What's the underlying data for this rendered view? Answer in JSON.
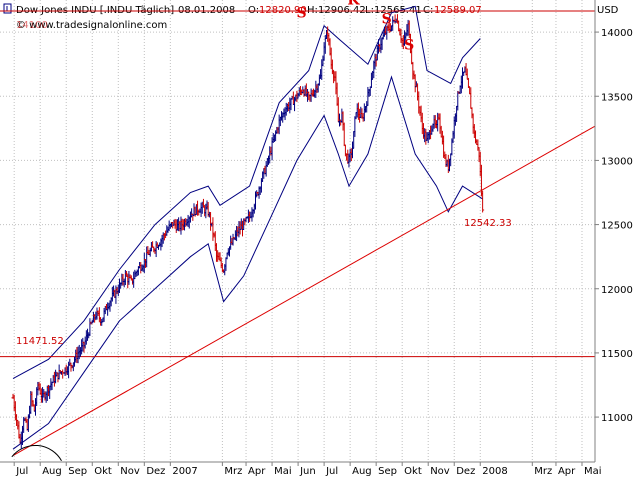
{
  "header": {
    "instrument": "Dow Jones INDU [.INDU  Täglich]",
    "date": "08.01.2008",
    "open_label": "O:",
    "open": "12820.90",
    "high_label": "H:",
    "high": "12906.42",
    "low_label": "L:",
    "low": "12565.41",
    "close_label": "C:",
    "close": "12589.07",
    "currency": "USD",
    "watermark": "© www.tradesignalonline.com",
    "ref_value_top": "14100"
  },
  "annotations": {
    "pattern_letters": [
      "S",
      "K",
      "S",
      "S"
    ],
    "last_price_label": "12542.33",
    "support_label": "11471.52"
  },
  "colors": {
    "price_up": "#000080",
    "price_down": "#cc0000",
    "band": "#000080",
    "trendline": "#dd0000",
    "hline": "#cc0000",
    "grid": "#c0c0c0"
  },
  "chart_data": {
    "type": "line",
    "series_type": "ohlc",
    "title": "Dow Jones INDU [.INDU  Täglich]",
    "ylim": [
      10650,
      14250
    ],
    "y_ticks": [
      11000,
      11500,
      12000,
      12500,
      13000,
      13500,
      14000
    ],
    "x_ticks": [
      "Jul",
      "Aug",
      "Sep",
      "Okt",
      "Nov",
      "Dez",
      "2007",
      "Mrz",
      "Apr",
      "Mai",
      "Jun",
      "Jul",
      "Aug",
      "Sep",
      "Okt",
      "Nov",
      "Dez",
      "2008",
      "Mrz",
      "Apr",
      "Mai"
    ],
    "x_tick_index": [
      1,
      23,
      45,
      67,
      89,
      111,
      133,
      177,
      197,
      219,
      241,
      263,
      285,
      307,
      329,
      351,
      373,
      395,
      439,
      459,
      481
    ],
    "x_range": [
      -11,
      492
    ],
    "grid": true,
    "price_path": [
      [
        0,
        11150
      ],
      [
        3,
        10980
      ],
      [
        6,
        10800
      ],
      [
        9,
        11000
      ],
      [
        12,
        10900
      ],
      [
        15,
        11150
      ],
      [
        18,
        11050
      ],
      [
        21,
        11250
      ],
      [
        25,
        11150
      ],
      [
        30,
        11230
      ],
      [
        35,
        11300
      ],
      [
        40,
        11350
      ],
      [
        45,
        11380
      ],
      [
        50,
        11420
      ],
      [
        55,
        11500
      ],
      [
        60,
        11560
      ],
      [
        65,
        11700
      ],
      [
        70,
        11800
      ],
      [
        75,
        11760
      ],
      [
        80,
        11880
      ],
      [
        85,
        11950
      ],
      [
        90,
        12020
      ],
      [
        95,
        12100
      ],
      [
        100,
        12050
      ],
      [
        105,
        12150
      ],
      [
        110,
        12200
      ],
      [
        115,
        12280
      ],
      [
        120,
        12330
      ],
      [
        125,
        12380
      ],
      [
        130,
        12450
      ],
      [
        135,
        12510
      ],
      [
        140,
        12480
      ],
      [
        145,
        12520
      ],
      [
        150,
        12580
      ],
      [
        155,
        12620
      ],
      [
        160,
        12630
      ],
      [
        165,
        12600
      ],
      [
        170,
        12400
      ],
      [
        172,
        12250
      ],
      [
        175,
        12200
      ],
      [
        178,
        12150
      ],
      [
        181,
        12300
      ],
      [
        185,
        12350
      ],
      [
        190,
        12450
      ],
      [
        195,
        12500
      ],
      [
        200,
        12560
      ],
      [
        205,
        12700
      ],
      [
        210,
        12850
      ],
      [
        215,
        12980
      ],
      [
        220,
        13150
      ],
      [
        225,
        13300
      ],
      [
        230,
        13400
      ],
      [
        235,
        13450
      ],
      [
        240,
        13500
      ],
      [
        245,
        13560
      ],
      [
        250,
        13480
      ],
      [
        255,
        13550
      ],
      [
        260,
        13650
      ],
      [
        263,
        13900
      ],
      [
        266,
        14000
      ],
      [
        269,
        13750
      ],
      [
        272,
        13650
      ],
      [
        275,
        13300
      ],
      [
        278,
        13350
      ],
      [
        281,
        13050
      ],
      [
        284,
        13000
      ],
      [
        287,
        13100
      ],
      [
        290,
        13400
      ],
      [
        295,
        13320
      ],
      [
        300,
        13500
      ],
      [
        305,
        13750
      ],
      [
        310,
        13900
      ],
      [
        315,
        14000
      ],
      [
        320,
        14050
      ],
      [
        324,
        14120
      ],
      [
        327,
        14000
      ],
      [
        330,
        13900
      ],
      [
        334,
        14050
      ],
      [
        338,
        13700
      ],
      [
        342,
        13500
      ],
      [
        346,
        13250
      ],
      [
        350,
        13150
      ],
      [
        355,
        13300
      ],
      [
        358,
        13250
      ],
      [
        360,
        13350
      ],
      [
        365,
        13000
      ],
      [
        368,
        12950
      ],
      [
        371,
        13150
      ],
      [
        375,
        13450
      ],
      [
        378,
        13600
      ],
      [
        382,
        13700
      ],
      [
        386,
        13500
      ],
      [
        390,
        13200
      ],
      [
        394,
        13050
      ],
      [
        397,
        12600
      ]
    ],
    "upper_band": [
      [
        0,
        11300
      ],
      [
        30,
        11450
      ],
      [
        60,
        11750
      ],
      [
        90,
        12150
      ],
      [
        120,
        12500
      ],
      [
        150,
        12750
      ],
      [
        165,
        12800
      ],
      [
        175,
        12650
      ],
      [
        200,
        12800
      ],
      [
        225,
        13450
      ],
      [
        250,
        13700
      ],
      [
        263,
        14050
      ],
      [
        275,
        13950
      ],
      [
        300,
        13750
      ],
      [
        320,
        14150
      ],
      [
        340,
        14200
      ],
      [
        350,
        13700
      ],
      [
        370,
        13600
      ],
      [
        380,
        13800
      ],
      [
        395,
        13950
      ]
    ],
    "lower_band": [
      [
        0,
        10750
      ],
      [
        30,
        10950
      ],
      [
        60,
        11350
      ],
      [
        90,
        11750
      ],
      [
        120,
        12000
      ],
      [
        150,
        12250
      ],
      [
        165,
        12350
      ],
      [
        178,
        11900
      ],
      [
        195,
        12100
      ],
      [
        220,
        12600
      ],
      [
        240,
        13000
      ],
      [
        263,
        13350
      ],
      [
        275,
        13050
      ],
      [
        284,
        12800
      ],
      [
        300,
        13050
      ],
      [
        320,
        13650
      ],
      [
        340,
        13050
      ],
      [
        358,
        12800
      ],
      [
        368,
        12600
      ],
      [
        380,
        12800
      ],
      [
        397,
        12700
      ]
    ],
    "trendline": [
      [
        0,
        10700
      ],
      [
        460,
        13100
      ]
    ],
    "support_level": 11471.52,
    "resistance_level": 14164,
    "last_price": 12542.33,
    "pattern_points": [
      {
        "label": "S",
        "x": 243,
        "y": 14100
      },
      {
        "label": "K",
        "x": 286,
        "y": 14200
      },
      {
        "label": "S",
        "x": 315,
        "y": 14050
      },
      {
        "label": "S",
        "x": 334,
        "y": 13850
      }
    ]
  }
}
